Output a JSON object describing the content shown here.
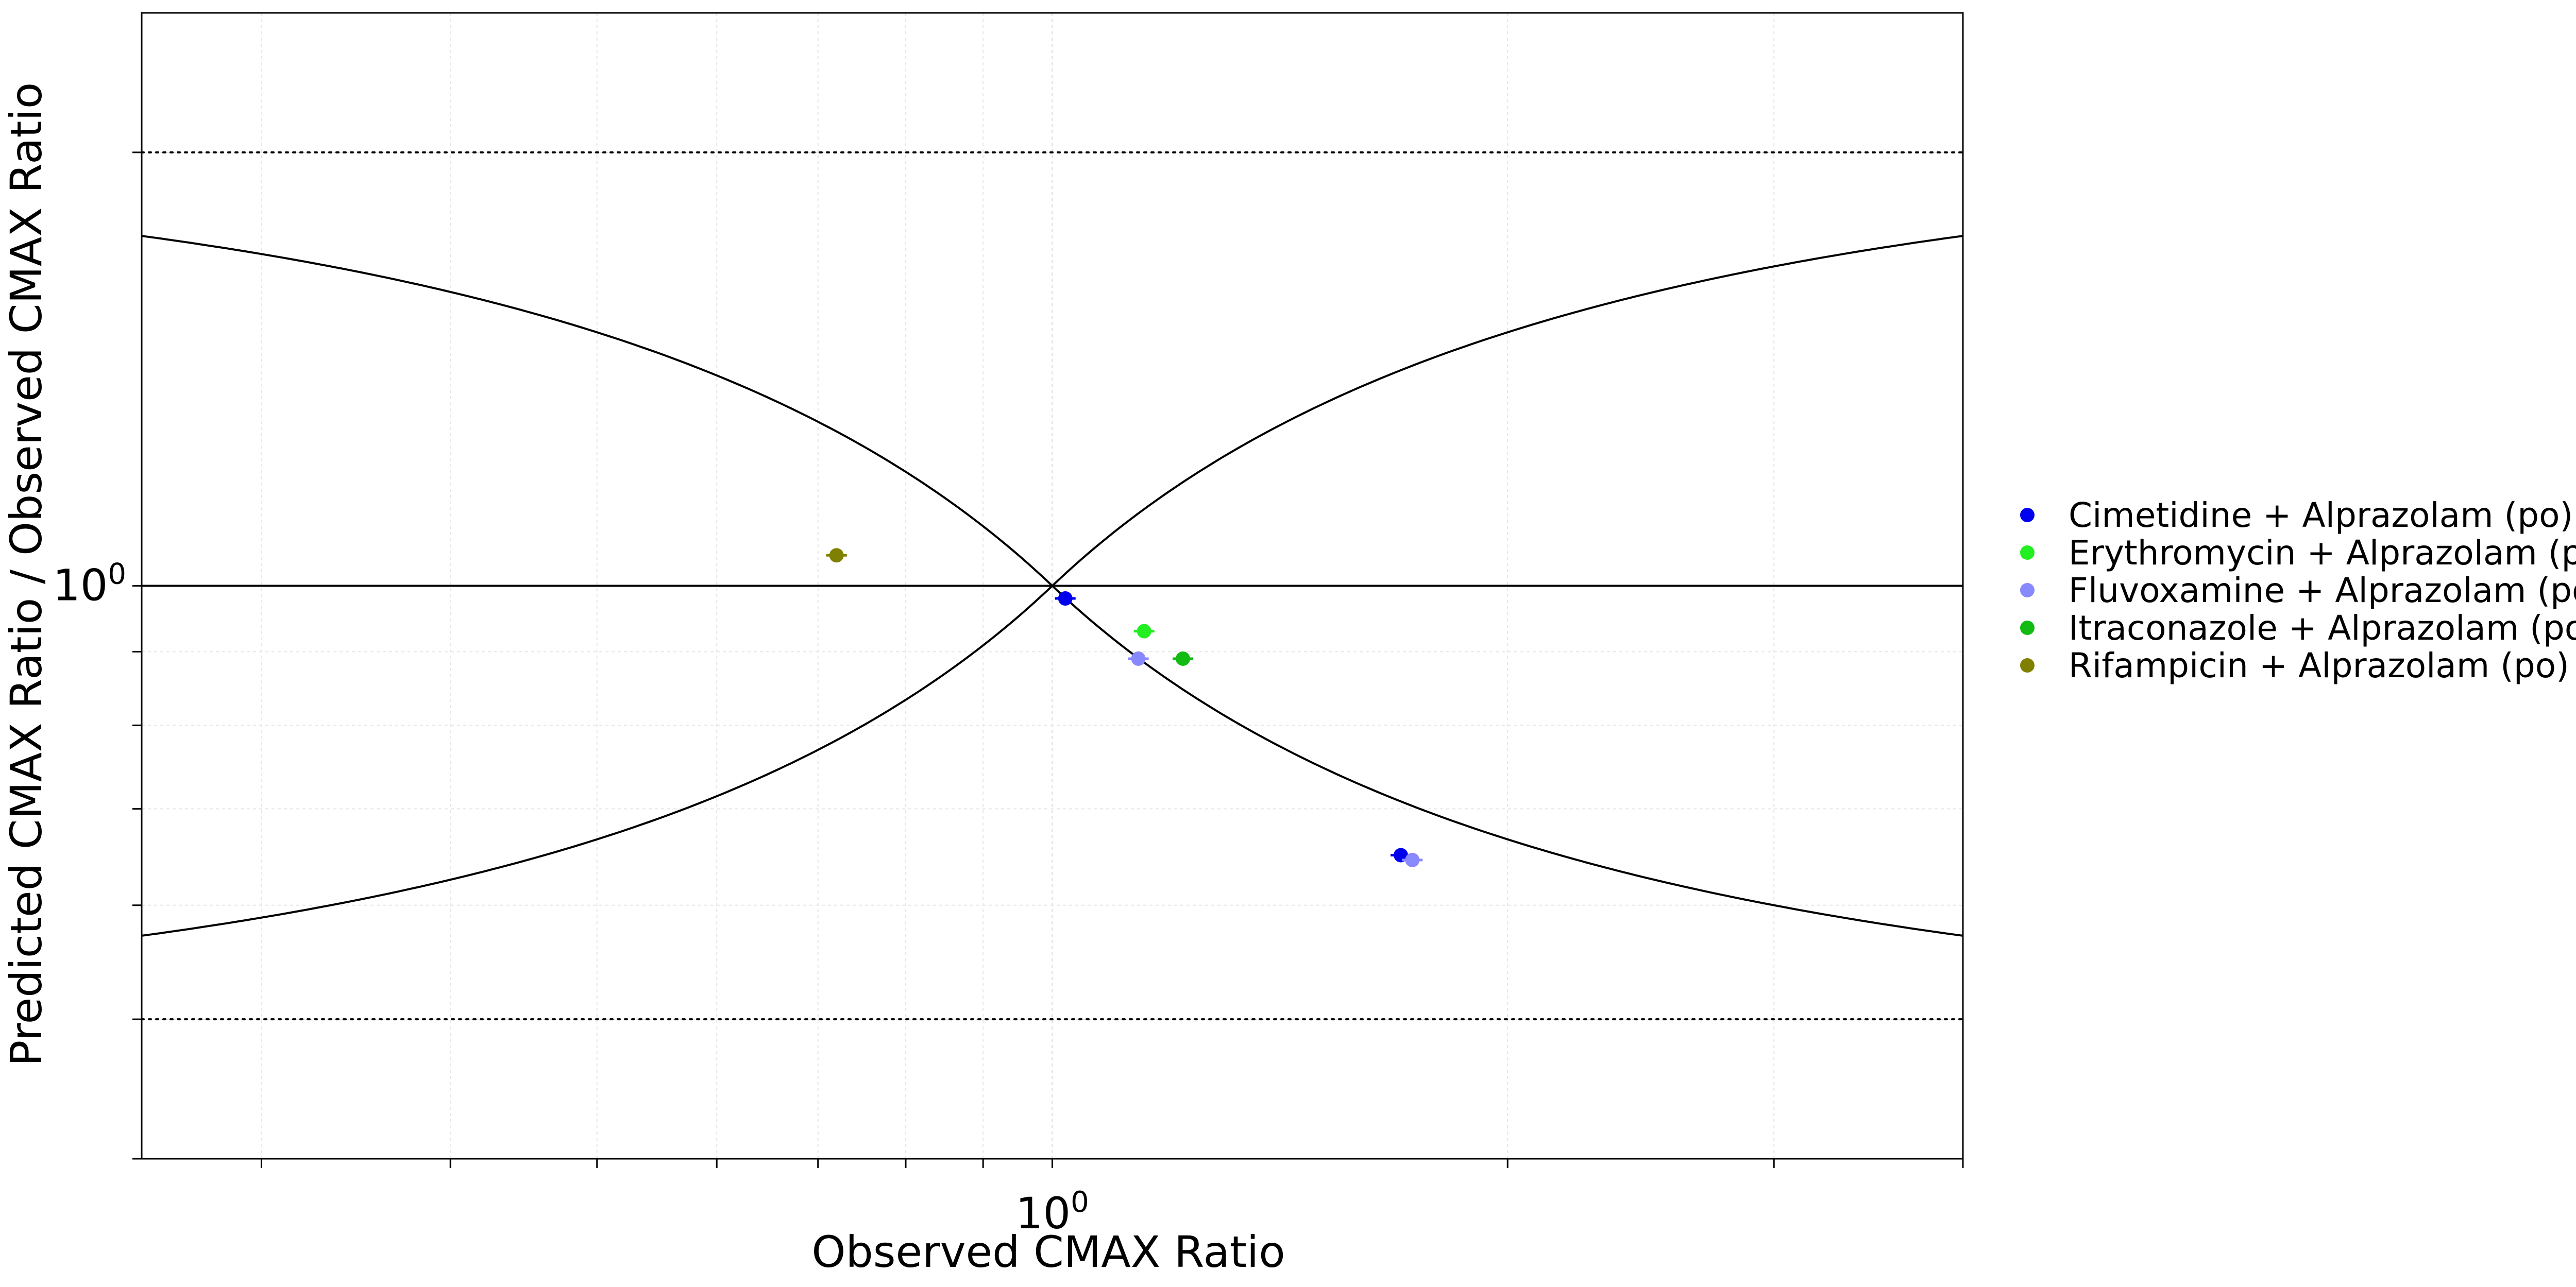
{
  "chart_data": {
    "type": "scatter",
    "title": "",
    "xlabel": "Observed CMAX Ratio",
    "ylabel": "Predicted CMAX Ratio / Observed CMAX Ratio",
    "xscale": "log",
    "yscale": "log",
    "xlim": [
      0.25,
      4.0
    ],
    "ylim": [
      0.4,
      2.5
    ],
    "x_tick_labels": [
      {
        "value": 1,
        "base": "10",
        "exp": "0"
      }
    ],
    "y_tick_labels": [
      {
        "value": 1,
        "base": "10",
        "exp": "0"
      }
    ],
    "grid": true,
    "legend_position": "right",
    "reference_lines": {
      "identity": 1,
      "dotted_limits": [
        0.5,
        2
      ],
      "guest_limit_curves": true
    },
    "series": [
      {
        "name": "Cimetidine + Alprazolam (po)",
        "color": "#0000ee",
        "points": [
          {
            "x": 1.02,
            "y": 0.98
          },
          {
            "x": 1.7,
            "y": 0.65
          }
        ]
      },
      {
        "name": "Erythromycin + Alprazolam (po)",
        "color": "#22ee22",
        "points": [
          {
            "x": 1.15,
            "y": 0.93
          }
        ]
      },
      {
        "name": "Fluvoxamine + Alprazolam (po)",
        "color": "#8888ff",
        "points": [
          {
            "x": 1.14,
            "y": 0.89
          },
          {
            "x": 1.73,
            "y": 0.645
          }
        ]
      },
      {
        "name": "Itraconazole + Alprazolam (po)",
        "color": "#11bb11",
        "points": [
          {
            "x": 1.22,
            "y": 0.89
          }
        ]
      },
      {
        "name": "Rifampicin + Alprazolam (po)",
        "color": "#808000",
        "points": [
          {
            "x": 0.72,
            "y": 1.05
          }
        ]
      }
    ]
  }
}
